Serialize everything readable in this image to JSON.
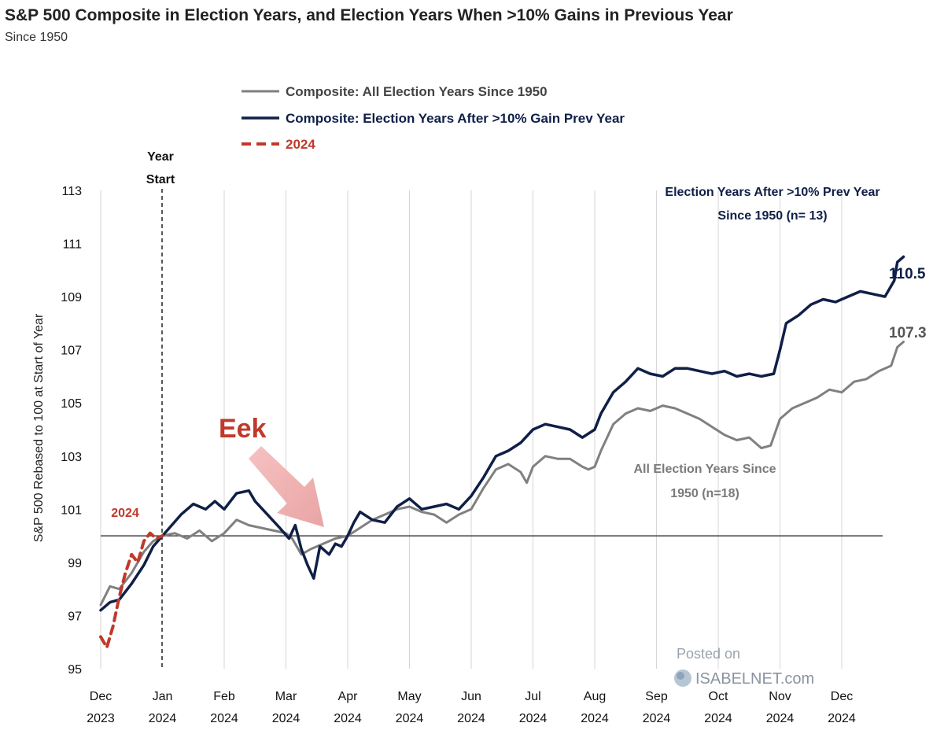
{
  "chart_data": {
    "type": "line",
    "title": "S&P 500 Composite in Election Years, and Election Years When >10% Gains in Previous Year",
    "subtitle": "Since 1950",
    "ylabel": "S&P 500 Rebased to 100 at Start of Year",
    "ylim": [
      95,
      113
    ],
    "y_ticks": [
      "95",
      "97",
      "99",
      "101",
      "103",
      "105",
      "107",
      "109",
      "111",
      "113"
    ],
    "x_ticks": [
      {
        "month": "Dec",
        "year": "2023"
      },
      {
        "month": "Jan",
        "year": "2024"
      },
      {
        "month": "Feb",
        "year": "2024"
      },
      {
        "month": "Mar",
        "year": "2024"
      },
      {
        "month": "Apr",
        "year": "2024"
      },
      {
        "month": "May",
        "year": "2024"
      },
      {
        "month": "Jun",
        "year": "2024"
      },
      {
        "month": "Jul",
        "year": "2024"
      },
      {
        "month": "Aug",
        "year": "2024"
      },
      {
        "month": "Sep",
        "year": "2024"
      },
      {
        "month": "Oct",
        "year": "2024"
      },
      {
        "month": "Nov",
        "year": "2024"
      },
      {
        "month": "Dec",
        "year": "2024"
      }
    ],
    "reference_line": 100,
    "year_start_label": [
      "Year",
      "Start"
    ],
    "legend": [
      {
        "label": "Composite: All Election Years Since 1950",
        "color": "#808080",
        "style": "solid"
      },
      {
        "label": "Composite: Election Years After >10% Gain Prev Year",
        "color": "#0f1f47",
        "style": "solid"
      },
      {
        "label": "2024",
        "color": "#c0392b",
        "style": "dashed"
      }
    ],
    "series": [
      {
        "name": "Composite: All Election Years Since 1950",
        "color": "#808080",
        "points": [
          [
            0.0,
            97.4
          ],
          [
            0.15,
            98.1
          ],
          [
            0.3,
            98.0
          ],
          [
            0.5,
            98.6
          ],
          [
            0.7,
            99.4
          ],
          [
            0.85,
            99.8
          ],
          [
            1.0,
            100.0
          ],
          [
            1.2,
            100.1
          ],
          [
            1.4,
            99.9
          ],
          [
            1.6,
            100.2
          ],
          [
            1.8,
            99.8
          ],
          [
            2.0,
            100.1
          ],
          [
            2.2,
            100.6
          ],
          [
            2.4,
            100.4
          ],
          [
            2.6,
            100.3
          ],
          [
            2.8,
            100.2
          ],
          [
            3.0,
            100.1
          ],
          [
            3.1,
            99.9
          ],
          [
            3.25,
            99.3
          ],
          [
            3.4,
            99.5
          ],
          [
            3.6,
            99.7
          ],
          [
            3.8,
            99.9
          ],
          [
            4.0,
            100.0
          ],
          [
            4.2,
            100.3
          ],
          [
            4.4,
            100.6
          ],
          [
            4.6,
            100.8
          ],
          [
            4.8,
            101.0
          ],
          [
            5.0,
            101.1
          ],
          [
            5.2,
            100.9
          ],
          [
            5.4,
            100.8
          ],
          [
            5.6,
            100.5
          ],
          [
            5.8,
            100.8
          ],
          [
            6.0,
            101.0
          ],
          [
            6.2,
            101.8
          ],
          [
            6.4,
            102.5
          ],
          [
            6.6,
            102.7
          ],
          [
            6.8,
            102.4
          ],
          [
            6.9,
            102.0
          ],
          [
            7.0,
            102.6
          ],
          [
            7.2,
            103.0
          ],
          [
            7.4,
            102.9
          ],
          [
            7.6,
            102.9
          ],
          [
            7.8,
            102.6
          ],
          [
            7.9,
            102.5
          ],
          [
            8.0,
            102.6
          ],
          [
            8.1,
            103.2
          ],
          [
            8.3,
            104.2
          ],
          [
            8.5,
            104.6
          ],
          [
            8.7,
            104.8
          ],
          [
            8.9,
            104.7
          ],
          [
            9.1,
            104.9
          ],
          [
            9.3,
            104.8
          ],
          [
            9.5,
            104.6
          ],
          [
            9.7,
            104.4
          ],
          [
            9.9,
            104.1
          ],
          [
            10.1,
            103.8
          ],
          [
            10.3,
            103.6
          ],
          [
            10.5,
            103.7
          ],
          [
            10.7,
            103.3
          ],
          [
            10.85,
            103.4
          ],
          [
            11.0,
            104.4
          ],
          [
            11.2,
            104.8
          ],
          [
            11.4,
            105.0
          ],
          [
            11.6,
            105.2
          ],
          [
            11.8,
            105.5
          ],
          [
            12.0,
            105.4
          ],
          [
            12.2,
            105.8
          ],
          [
            12.4,
            105.9
          ],
          [
            12.6,
            106.2
          ],
          [
            12.8,
            106.4
          ],
          [
            12.9,
            107.1
          ],
          [
            13.0,
            107.3
          ]
        ]
      },
      {
        "name": "Composite: Election Years After >10% Gain Prev Year",
        "color": "#0f1f47",
        "points": [
          [
            0.0,
            97.2
          ],
          [
            0.15,
            97.5
          ],
          [
            0.3,
            97.6
          ],
          [
            0.5,
            98.2
          ],
          [
            0.7,
            98.9
          ],
          [
            0.85,
            99.6
          ],
          [
            1.0,
            100.0
          ],
          [
            1.15,
            100.4
          ],
          [
            1.3,
            100.8
          ],
          [
            1.5,
            101.2
          ],
          [
            1.7,
            101.0
          ],
          [
            1.85,
            101.3
          ],
          [
            2.0,
            101.0
          ],
          [
            2.2,
            101.6
          ],
          [
            2.4,
            101.7
          ],
          [
            2.5,
            101.3
          ],
          [
            2.7,
            100.8
          ],
          [
            2.9,
            100.3
          ],
          [
            3.05,
            99.9
          ],
          [
            3.15,
            100.4
          ],
          [
            3.25,
            99.5
          ],
          [
            3.35,
            98.9
          ],
          [
            3.45,
            98.4
          ],
          [
            3.55,
            99.6
          ],
          [
            3.7,
            99.3
          ],
          [
            3.8,
            99.7
          ],
          [
            3.9,
            99.6
          ],
          [
            4.0,
            100.0
          ],
          [
            4.1,
            100.5
          ],
          [
            4.2,
            100.9
          ],
          [
            4.4,
            100.6
          ],
          [
            4.6,
            100.5
          ],
          [
            4.8,
            101.1
          ],
          [
            5.0,
            101.4
          ],
          [
            5.2,
            101.0
          ],
          [
            5.4,
            101.1
          ],
          [
            5.6,
            101.2
          ],
          [
            5.8,
            101.0
          ],
          [
            6.0,
            101.5
          ],
          [
            6.2,
            102.2
          ],
          [
            6.4,
            103.0
          ],
          [
            6.6,
            103.2
          ],
          [
            6.8,
            103.5
          ],
          [
            7.0,
            104.0
          ],
          [
            7.2,
            104.2
          ],
          [
            7.4,
            104.1
          ],
          [
            7.6,
            104.0
          ],
          [
            7.8,
            103.7
          ],
          [
            8.0,
            104.0
          ],
          [
            8.1,
            104.6
          ],
          [
            8.3,
            105.4
          ],
          [
            8.5,
            105.8
          ],
          [
            8.7,
            106.3
          ],
          [
            8.9,
            106.1
          ],
          [
            9.1,
            106.0
          ],
          [
            9.3,
            106.3
          ],
          [
            9.5,
            106.3
          ],
          [
            9.7,
            106.2
          ],
          [
            9.9,
            106.1
          ],
          [
            10.1,
            106.2
          ],
          [
            10.3,
            106.0
          ],
          [
            10.5,
            106.1
          ],
          [
            10.7,
            106.0
          ],
          [
            10.9,
            106.1
          ],
          [
            11.0,
            107.0
          ],
          [
            11.1,
            108.0
          ],
          [
            11.3,
            108.3
          ],
          [
            11.5,
            108.7
          ],
          [
            11.7,
            108.9
          ],
          [
            11.9,
            108.8
          ],
          [
            12.1,
            109.0
          ],
          [
            12.3,
            109.2
          ],
          [
            12.5,
            109.1
          ],
          [
            12.7,
            109.0
          ],
          [
            12.85,
            109.6
          ],
          [
            12.9,
            110.3
          ],
          [
            13.0,
            110.5
          ]
        ]
      },
      {
        "name": "2024",
        "color": "#c0392b",
        "points": [
          [
            0.0,
            96.2
          ],
          [
            0.1,
            95.8
          ],
          [
            0.2,
            96.6
          ],
          [
            0.3,
            97.7
          ],
          [
            0.4,
            98.6
          ],
          [
            0.5,
            99.3
          ],
          [
            0.6,
            99.0
          ],
          [
            0.7,
            99.8
          ],
          [
            0.8,
            100.1
          ],
          [
            0.9,
            99.9
          ],
          [
            1.0,
            100.0
          ]
        ]
      }
    ],
    "end_labels": [
      {
        "series": "Composite: Election Years After >10% Gain Prev Year",
        "text": "110.5"
      },
      {
        "series": "Composite: All Election Years Since 1950",
        "text": "107.3"
      }
    ]
  },
  "annotations": {
    "top_series_label": [
      "Election Years After >10% Prev Year",
      "Since 1950 (n= 13)"
    ],
    "all_series_label": [
      "All Election Years Since",
      "1950 (n=18)"
    ],
    "label_2024": "2024",
    "eek": "Eek"
  },
  "watermark": {
    "line1": "Posted on",
    "line2": "ISABELNET.com"
  }
}
